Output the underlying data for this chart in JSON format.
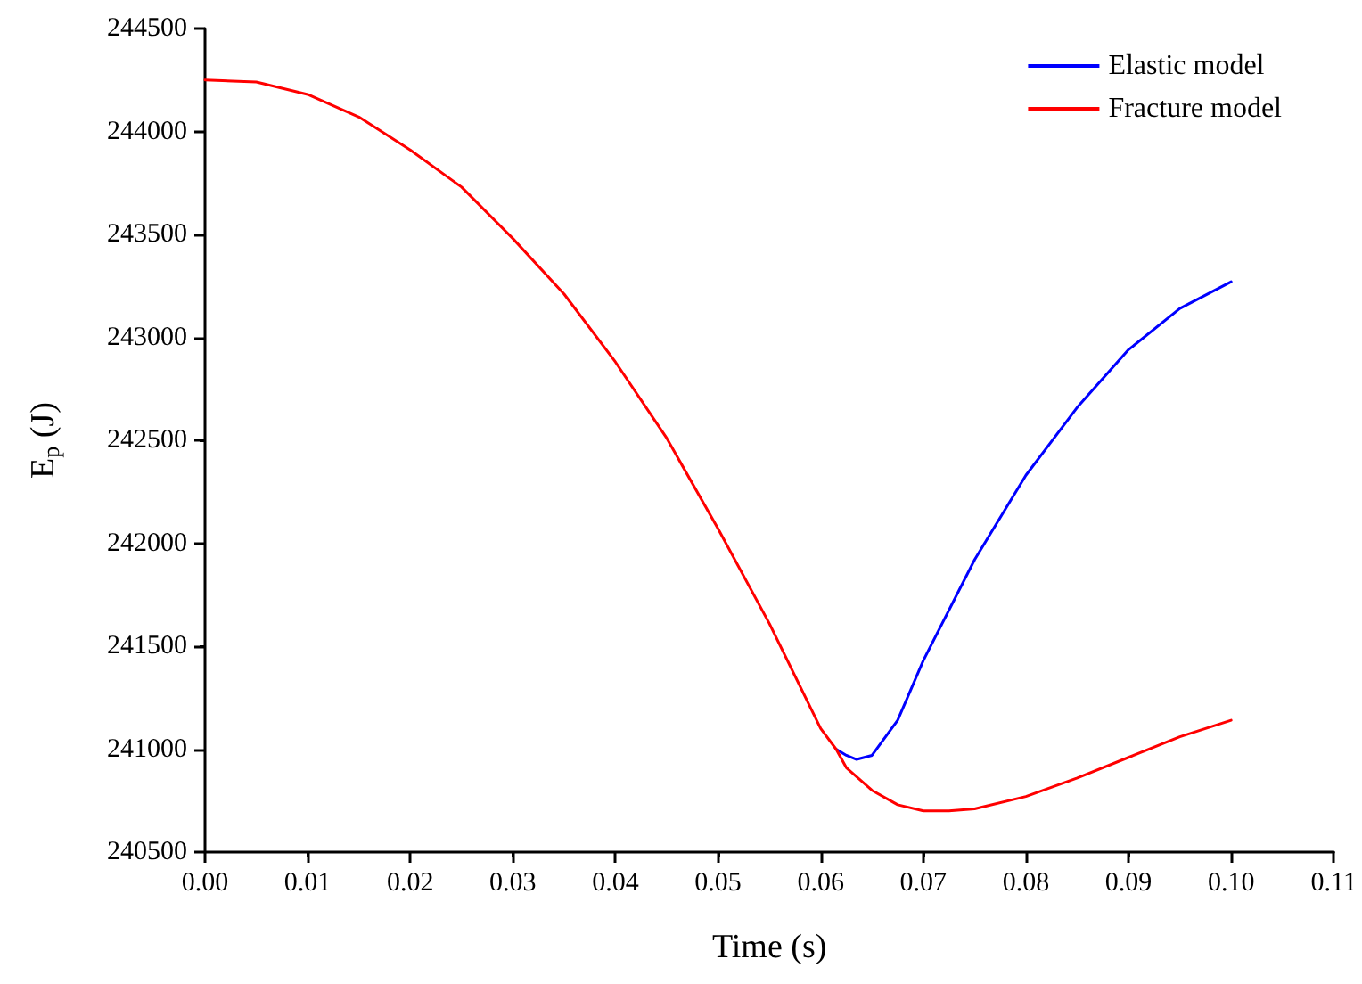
{
  "chart_data": {
    "type": "line",
    "xlabel": "Time (s)",
    "ylabel": "E$_{p}$ (J)",
    "xlim": [
      0,
      0.11
    ],
    "xticks": [
      {
        "value": 0,
        "label": "0.00"
      },
      {
        "value": 0.01,
        "label": "0.01"
      },
      {
        "value": 0.02,
        "label": "0.02"
      },
      {
        "value": 0.03,
        "label": "0.03"
      },
      {
        "value": 0.04,
        "label": "0.04"
      },
      {
        "value": 0.05,
        "label": "0.05"
      },
      {
        "value": 0.06,
        "label": "0.06"
      },
      {
        "value": 0.07,
        "label": "0.07"
      },
      {
        "value": 0.08,
        "label": "0.08"
      },
      {
        "value": 0.09,
        "label": "0.09"
      },
      {
        "value": 0.1,
        "label": "0.10"
      },
      {
        "value": 0.11,
        "label": "0.11"
      }
    ],
    "ylim": [
      240500,
      244500
    ],
    "yticks": [
      240500,
      241000,
      241500,
      242000,
      242500,
      243000,
      243500,
      244000,
      244500
    ],
    "grid": false,
    "legend": "top right",
    "marker": "none",
    "line_style": "solid",
    "series": [
      {
        "name": "Elastic model",
        "color": "#0000ff",
        "x": [
          0.0615,
          0.0625,
          0.0635,
          0.065,
          0.0675,
          0.07,
          0.075,
          0.08,
          0.085,
          0.09,
          0.095,
          0.1
        ],
        "values": [
          241000,
          240970,
          240950,
          240970,
          241140,
          241430,
          241920,
          242330,
          242660,
          242940,
          243140,
          243270
        ]
      },
      {
        "name": "Fracture model",
        "color": "#ff0000",
        "x": [
          0,
          0.005,
          0.01,
          0.015,
          0.02,
          0.025,
          0.03,
          0.035,
          0.04,
          0.045,
          0.05,
          0.055,
          0.06,
          0.0615,
          0.0625,
          0.065,
          0.0675,
          0.07,
          0.0725,
          0.075,
          0.08,
          0.085,
          0.09,
          0.095,
          0.1
        ],
        "values": [
          244250,
          244240,
          244180,
          244070,
          243910,
          243730,
          243480,
          243210,
          242880,
          242510,
          242070,
          241610,
          241100,
          241000,
          240910,
          240800,
          240730,
          240700,
          240700,
          240710,
          240770,
          240860,
          240960,
          241060,
          241140
        ]
      }
    ]
  }
}
